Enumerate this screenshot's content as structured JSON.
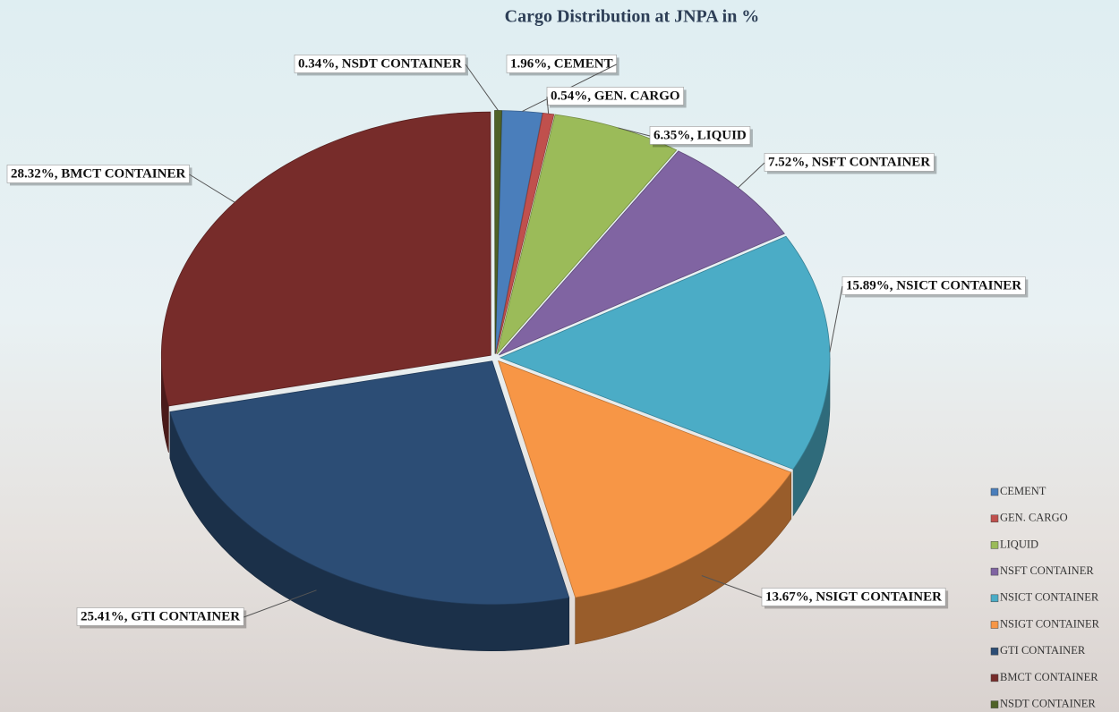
{
  "chart_data": {
    "type": "pie3d",
    "title": "Cargo Distribution at JNPA in %",
    "categories": [
      "CEMENT",
      "GEN. CARGO",
      "LIQUID",
      "NSFT CONTAINER",
      "NSICT CONTAINER",
      "NSIGT CONTAINER",
      "GTI CONTAINER",
      "BMCT CONTAINER",
      "NSDT CONTAINER"
    ],
    "values": [
      1.96,
      0.54,
      6.35,
      7.52,
      15.89,
      13.67,
      25.41,
      28.32,
      0.34
    ],
    "value_labels": [
      "1.96%, CEMENT",
      "0.54%, GEN. CARGO",
      "6.35%, LIQUID",
      "7.52%, NSFT CONTAINER",
      "15.89%, NSICT CONTAINER",
      "13.67%, NSIGT CONTAINER",
      "25.41%, GTI CONTAINER",
      "28.32%, BMCT CONTAINER",
      "0.34%, NSDT CONTAINER"
    ],
    "colors": [
      "#4a7ebb",
      "#c0504d",
      "#9bbb59",
      "#8064a2",
      "#4bacc6",
      "#f79646",
      "#2c4d75",
      "#772c2a",
      "#4f6228"
    ],
    "legend": "right-bottom"
  }
}
